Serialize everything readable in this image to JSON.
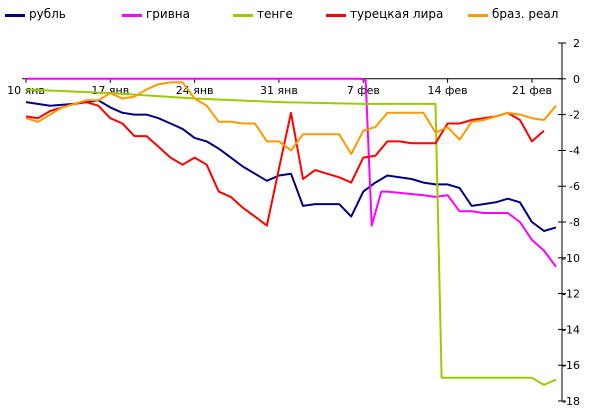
{
  "chart_data": {
    "type": "line",
    "title": "",
    "xlabel": "",
    "ylabel": "",
    "ylim": [
      -18,
      2
    ],
    "yticks": [
      2,
      0,
      -2,
      -4,
      -6,
      -8,
      -10,
      -12,
      -14,
      -16,
      -18
    ],
    "xlim": [
      0,
      44
    ],
    "xticks": [
      {
        "x": 0,
        "label": "10 янв"
      },
      {
        "x": 7,
        "label": "17 янв"
      },
      {
        "x": 14,
        "label": "24 янв"
      },
      {
        "x": 21,
        "label": "31 янв"
      },
      {
        "x": 28,
        "label": "7 фев"
      },
      {
        "x": 35,
        "label": "14 фев"
      },
      {
        "x": 42,
        "label": "21 фев"
      }
    ],
    "grid": false,
    "legend_position": "top",
    "series": [
      {
        "name": "рубль",
        "color": "#000080",
        "points": [
          [
            0,
            -1.3
          ],
          [
            2,
            -1.5
          ],
          [
            4,
            -1.4
          ],
          [
            5,
            -1.3
          ],
          [
            6,
            -1.2
          ],
          [
            7,
            -1.6
          ],
          [
            8,
            -1.9
          ],
          [
            9,
            -2.0
          ],
          [
            10,
            -2.0
          ],
          [
            11,
            -2.2
          ],
          [
            12,
            -2.5
          ],
          [
            13,
            -2.8
          ],
          [
            14,
            -3.3
          ],
          [
            15,
            -3.5
          ],
          [
            16,
            -3.9
          ],
          [
            17,
            -4.4
          ],
          [
            18,
            -4.9
          ],
          [
            19,
            -5.3
          ],
          [
            20,
            -5.7
          ],
          [
            21,
            -5.4
          ],
          [
            22,
            -5.3
          ],
          [
            23,
            -7.1
          ],
          [
            24,
            -7.0
          ],
          [
            25,
            -7.0
          ],
          [
            26,
            -7.0
          ],
          [
            27,
            -7.7
          ],
          [
            28,
            -6.3
          ],
          [
            29,
            -5.8
          ],
          [
            30,
            -5.4
          ],
          [
            31,
            -5.5
          ],
          [
            32,
            -5.6
          ],
          [
            33,
            -5.8
          ],
          [
            34,
            -5.9
          ],
          [
            35,
            -5.9
          ],
          [
            36,
            -6.1
          ],
          [
            37,
            -7.1
          ],
          [
            38,
            -7.0
          ],
          [
            39,
            -6.9
          ],
          [
            40,
            -6.7
          ],
          [
            41,
            -6.9
          ],
          [
            42,
            -8.0
          ],
          [
            43,
            -8.5
          ],
          [
            44,
            -8.3
          ]
        ]
      },
      {
        "name": "гривна",
        "color": "#ff00ff",
        "points": [
          [
            0,
            0.0
          ],
          [
            27.8,
            0.0
          ],
          [
            28.2,
            -0.1
          ],
          [
            28.7,
            -8.2
          ],
          [
            29.5,
            -6.3
          ],
          [
            30,
            -6.3
          ],
          [
            33,
            -6.5
          ],
          [
            34,
            -6.6
          ],
          [
            35,
            -6.5
          ],
          [
            36,
            -7.4
          ],
          [
            37,
            -7.4
          ],
          [
            38,
            -7.5
          ],
          [
            39,
            -7.5
          ],
          [
            40,
            -7.5
          ],
          [
            41,
            -8.0
          ],
          [
            42,
            -9.0
          ],
          [
            43,
            -9.6
          ],
          [
            44,
            -10.5
          ]
        ]
      },
      {
        "name": "тенге",
        "color": "#99cc00",
        "points": [
          [
            0,
            -0.6
          ],
          [
            7,
            -0.8
          ],
          [
            14,
            -1.1
          ],
          [
            21,
            -1.3
          ],
          [
            28,
            -1.4
          ],
          [
            34,
            -1.4
          ],
          [
            34.5,
            -16.7
          ],
          [
            35,
            -16.7
          ],
          [
            42,
            -16.7
          ],
          [
            43,
            -17.1
          ],
          [
            44,
            -16.8
          ]
        ]
      },
      {
        "name": "турецкая лира",
        "color": "#ff0000",
        "points": [
          [
            0,
            -2.1
          ],
          [
            1,
            -2.2
          ],
          [
            2,
            -1.8
          ],
          [
            3,
            -1.6
          ],
          [
            4,
            -1.4
          ],
          [
            5,
            -1.3
          ],
          [
            6,
            -1.5
          ],
          [
            7,
            -2.2
          ],
          [
            8,
            -2.5
          ],
          [
            9,
            -3.2
          ],
          [
            10,
            -3.2
          ],
          [
            11,
            -3.8
          ],
          [
            12,
            -4.4
          ],
          [
            13,
            -4.8
          ],
          [
            14,
            -4.4
          ],
          [
            15,
            -4.8
          ],
          [
            16,
            -6.3
          ],
          [
            17,
            -6.6
          ],
          [
            18,
            -7.2
          ],
          [
            19,
            -7.7
          ],
          [
            20,
            -8.2
          ],
          [
            21,
            -5.0
          ],
          [
            22,
            -1.9
          ],
          [
            23,
            -5.6
          ],
          [
            24,
            -5.1
          ],
          [
            25,
            -5.3
          ],
          [
            26,
            -5.5
          ],
          [
            27,
            -5.8
          ],
          [
            28,
            -4.4
          ],
          [
            29,
            -4.3
          ],
          [
            30,
            -3.5
          ],
          [
            31,
            -3.5
          ],
          [
            32,
            -3.6
          ],
          [
            33,
            -3.6
          ],
          [
            34,
            -3.6
          ],
          [
            35,
            -2.5
          ],
          [
            36,
            -2.5
          ],
          [
            37,
            -2.3
          ],
          [
            38,
            -2.2
          ],
          [
            39,
            -2.1
          ],
          [
            40,
            -1.9
          ],
          [
            41,
            -2.3
          ],
          [
            42,
            -3.5
          ],
          [
            43,
            -2.9
          ]
        ]
      },
      {
        "name": "браз. реал",
        "color": "#ff9900",
        "points": [
          [
            0,
            -2.2
          ],
          [
            1,
            -2.4
          ],
          [
            2,
            -2.0
          ],
          [
            3,
            -1.6
          ],
          [
            4,
            -1.4
          ],
          [
            5,
            -1.2
          ],
          [
            6,
            -1.2
          ],
          [
            7,
            -0.8
          ],
          [
            8,
            -1.1
          ],
          [
            9,
            -1.0
          ],
          [
            10,
            -0.6
          ],
          [
            11,
            -0.3
          ],
          [
            12,
            -0.2
          ],
          [
            13,
            -0.2
          ],
          [
            14,
            -1.1
          ],
          [
            15,
            -1.5
          ],
          [
            16,
            -2.4
          ],
          [
            17,
            -2.4
          ],
          [
            18,
            -2.5
          ],
          [
            19,
            -2.5
          ],
          [
            20,
            -3.5
          ],
          [
            21,
            -3.5
          ],
          [
            22,
            -4.0
          ],
          [
            23,
            -3.1
          ],
          [
            24,
            -3.1
          ],
          [
            25,
            -3.1
          ],
          [
            26,
            -3.1
          ],
          [
            27,
            -4.2
          ],
          [
            28,
            -2.9
          ],
          [
            29,
            -2.7
          ],
          [
            30,
            -1.9
          ],
          [
            31,
            -1.9
          ],
          [
            32,
            -1.9
          ],
          [
            33,
            -1.9
          ],
          [
            34,
            -3.0
          ],
          [
            35,
            -2.7
          ],
          [
            36,
            -3.4
          ],
          [
            37,
            -2.4
          ],
          [
            38,
            -2.3
          ],
          [
            39,
            -2.1
          ],
          [
            40,
            -1.9
          ],
          [
            41,
            -2.0
          ],
          [
            42,
            -2.2
          ],
          [
            43,
            -2.3
          ],
          [
            44,
            -1.5
          ]
        ]
      }
    ]
  }
}
